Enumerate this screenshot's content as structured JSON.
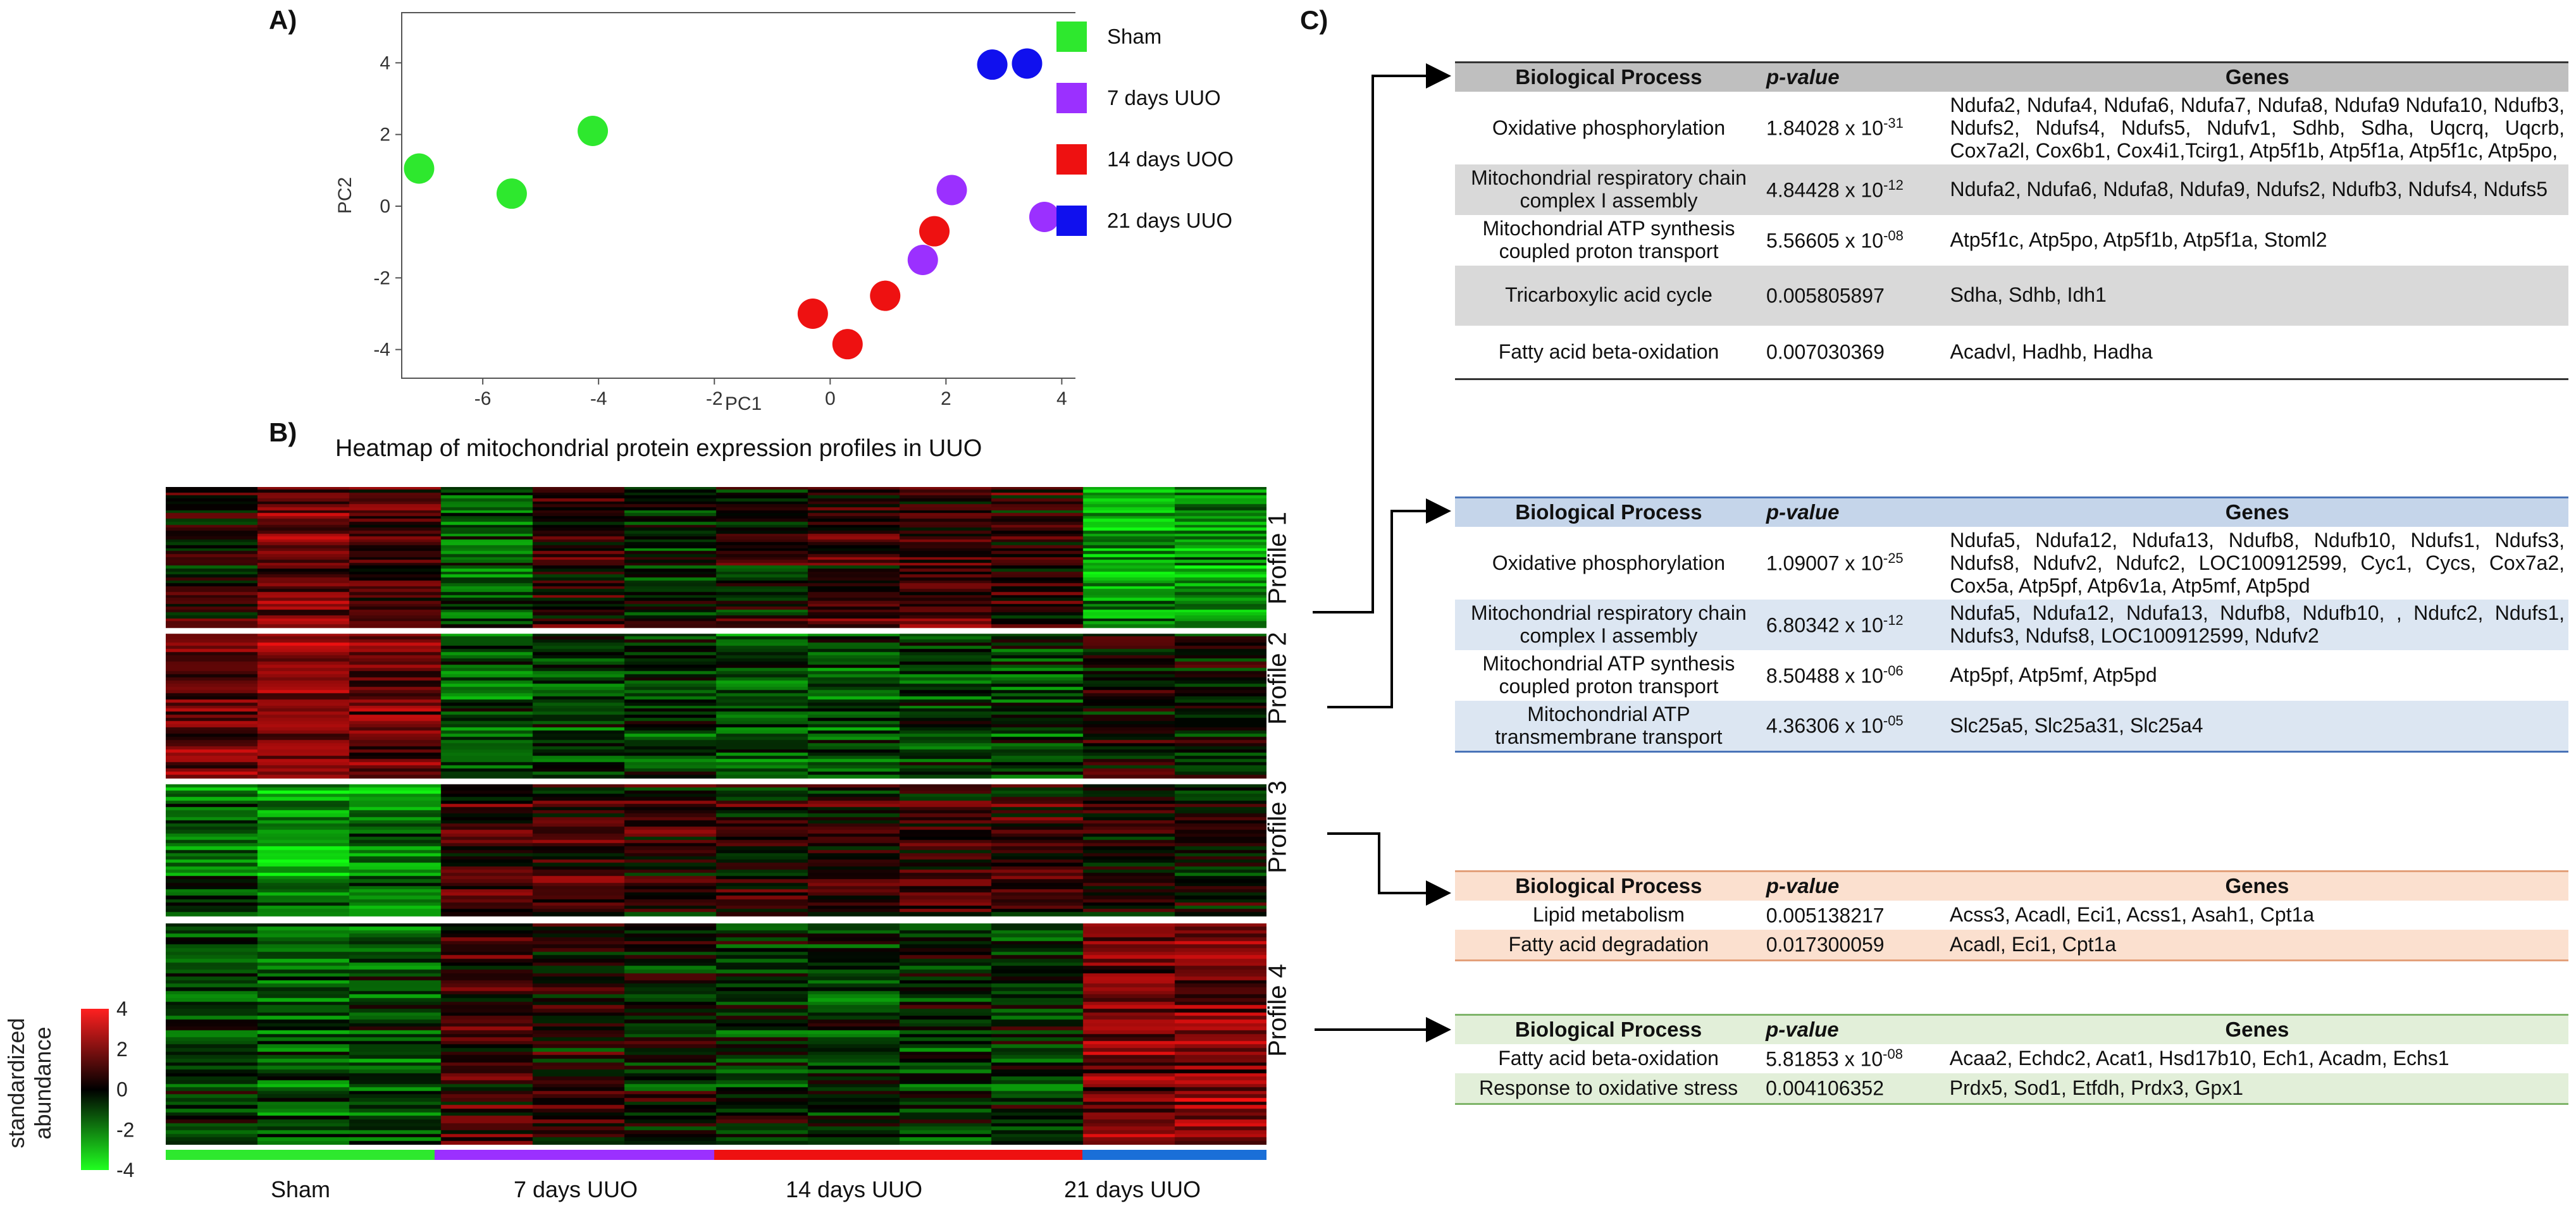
{
  "panel_labels": {
    "a": "A)",
    "b": "B)",
    "c": "C)"
  },
  "colors": {
    "sham": "#2ee82e",
    "uuo7": "#9b30ff",
    "uuo14": "#ee1111",
    "uuo21": "#1010ee",
    "heat_high": "#ff2020",
    "heat_low": "#20ff20",
    "heat_mid": "#000000",
    "group_bar_21": "#1a6fd8"
  },
  "legend": {
    "items": [
      {
        "label": "Sham",
        "color": "#2ee82e"
      },
      {
        "label": "7 days UUO",
        "color": "#9b30ff"
      },
      {
        "label": "14 days UOO",
        "color": "#ee1111"
      },
      {
        "label": "21 days UUO",
        "color": "#1010ee"
      }
    ]
  },
  "chart_data": [
    {
      "type": "scatter",
      "title": "",
      "xlabel": "PC1",
      "ylabel": "PC2",
      "xlim": [
        -7.4,
        4.4
      ],
      "ylim": [
        -4.8,
        5.4
      ],
      "xticks": [
        -6,
        -4,
        -2,
        0,
        2,
        4
      ],
      "yticks": [
        -4,
        -2,
        0,
        2,
        4
      ],
      "grid": false,
      "series": [
        {
          "name": "Sham",
          "color": "#2ee82e",
          "points": [
            [
              -7.1,
              1.05
            ],
            [
              -5.5,
              0.35
            ],
            [
              -4.1,
              2.1
            ]
          ]
        },
        {
          "name": "7 days UUO",
          "color": "#9b30ff",
          "points": [
            [
              2.1,
              0.45
            ],
            [
              1.6,
              -1.5
            ],
            [
              3.7,
              -0.3
            ]
          ]
        },
        {
          "name": "14 days UOO",
          "color": "#ee1111",
          "points": [
            [
              1.8,
              -0.7
            ],
            [
              0.95,
              -2.5
            ],
            [
              -0.3,
              -3.0
            ],
            [
              0.3,
              -3.85
            ]
          ]
        },
        {
          "name": "21 days UUO",
          "color": "#1010ee",
          "points": [
            [
              2.8,
              3.95
            ],
            [
              3.4,
              3.98
            ]
          ]
        }
      ]
    },
    {
      "type": "heatmap",
      "title": "Heatmap of mitochondrial protein expression profiles in UUO",
      "colorbar": {
        "title_line1": "standardized",
        "title_line2": "abundance",
        "range": [
          -4,
          4
        ],
        "ticks": [
          4,
          2,
          0,
          -2,
          -4
        ]
      },
      "groups": [
        "Sham",
        "7 days UUO",
        "14 days UUO",
        "21 days UUO"
      ],
      "columns_per_group": 3,
      "profiles": [
        {
          "label": "Profile 1",
          "rows": 48,
          "pattern": [
            0.3,
            1.3,
            0.8,
            -1.3,
            0.4,
            -0.4,
            0.0,
            0.6,
            0.7,
            0.5,
            -2.2,
            -2.0
          ]
        },
        {
          "label": "Profile 2",
          "rows": 46,
          "pattern": [
            1.6,
            1.8,
            1.5,
            -1.2,
            -0.6,
            -0.6,
            -1.1,
            -0.9,
            -0.7,
            -0.7,
            0.3,
            0.0
          ]
        },
        {
          "label": "Profile 3",
          "rows": 40,
          "pattern": [
            -1.3,
            -2.1,
            -1.6,
            0.6,
            0.8,
            0.5,
            0.3,
            0.3,
            0.7,
            0.6,
            0.2,
            0.1
          ]
        },
        {
          "label": "Profile 4",
          "rows": 62,
          "pattern": [
            -0.7,
            -1.3,
            -1.1,
            0.8,
            0.2,
            -0.3,
            -0.4,
            -0.6,
            -0.4,
            -0.6,
            1.6,
            1.6
          ]
        }
      ]
    }
  ],
  "tables": [
    {
      "headers": {
        "bp": "Biological Process",
        "pv": "p-value",
        "genes": "Genes"
      },
      "rows": [
        {
          "bp": "Oxidative phosphorylation",
          "pv_base": "1.84028 x 10",
          "pv_exp": "-31",
          "genes": "Ndufa2, Ndufa4, Ndufa6, Ndufa7, Ndufa8, Ndufa9 Ndufa10, Ndufb3, Ndufs2, Ndufs4, Ndufs5, Ndufv1, Sdhb, Sdha, Uqcrq, Uqcrb, Cox7a2l, Cox6b1, Cox4i1,Tcirg1, Atp5f1b, Atp5f1a, Atp5f1c, Atp5po,"
        },
        {
          "bp": "Mitochondrial respiratory chain complex I assembly",
          "pv_base": "4.84428 x 10",
          "pv_exp": "-12",
          "genes": "Ndufa2, Ndufa6, Ndufa8, Ndufa9, Ndufs2, Ndufb3, Ndufs4, Ndufs5"
        },
        {
          "bp": "Mitochondrial ATP synthesis coupled proton transport",
          "pv_base": "5.56605 x 10",
          "pv_exp": "-08",
          "genes": "Atp5f1c, Atp5po, Atp5f1b, Atp5f1a, Stoml2"
        },
        {
          "bp": "Tricarboxylic acid cycle",
          "pv_base": "0.005805897",
          "pv_exp": "",
          "genes": "Sdha, Sdhb, Idh1"
        },
        {
          "bp": "Fatty acid beta-oxidation",
          "pv_base": "0.007030369",
          "pv_exp": "",
          "genes": "Acadvl, Hadhb, Hadha"
        }
      ]
    },
    {
      "headers": {
        "bp": "Biological Process",
        "pv": "p-value",
        "genes": "Genes"
      },
      "rows": [
        {
          "bp": "Oxidative phosphorylation",
          "pv_base": "1.09007 x 10",
          "pv_exp": "-25",
          "genes": "Ndufa5, Ndufa12, Ndufa13, Ndufb8, Ndufb10, Ndufs1, Ndufs3, Ndufs8, Ndufv2, Ndufc2, LOC100912599, Cyc1, Cycs, Cox7a2, Cox5a, Atp5pf, Atp6v1a, Atp5mf, Atp5pd"
        },
        {
          "bp": "Mitochondrial respiratory chain complex I assembly",
          "pv_base": "6.80342 x 10",
          "pv_exp": "-12",
          "genes": "Ndufa5, Ndufa12, Ndufa13, Ndufb8, Ndufb10, , Ndufc2, Ndufs1, Ndufs3, Ndufs8, LOC100912599, Ndufv2"
        },
        {
          "bp": "Mitochondrial ATP synthesis coupled proton transport",
          "pv_base": "8.50488 x 10",
          "pv_exp": "-06",
          "genes": "Atp5pf, Atp5mf, Atp5pd"
        },
        {
          "bp": "Mitochondrial ATP transmembrane transport",
          "pv_base": "4.36306 x 10",
          "pv_exp": "-05",
          "genes": "Slc25a5, Slc25a31, Slc25a4"
        }
      ]
    },
    {
      "headers": {
        "bp": "Biological Process",
        "pv": "p-value",
        "genes": "Genes"
      },
      "rows": [
        {
          "bp": "Lipid metabolism",
          "pv_base": "0.005138217",
          "pv_exp": "",
          "genes": "Acss3, Acadl, Eci1, Acss1, Asah1, Cpt1a"
        },
        {
          "bp": "Fatty acid degradation",
          "pv_base": "0.017300059",
          "pv_exp": "",
          "genes": "Acadl, Eci1, Cpt1a"
        }
      ]
    },
    {
      "headers": {
        "bp": "Biological Process",
        "pv": "p-value",
        "genes": "Genes"
      },
      "rows": [
        {
          "bp": "Fatty acid beta-oxidation",
          "pv_base": "5.81853 x 10",
          "pv_exp": "-08",
          "genes": "Acaa2, Echdc2, Acat1, Hsd17b10, Ech1, Acadm, Echs1"
        },
        {
          "bp": "Response to oxidative stress",
          "pv_base": "0.004106352",
          "pv_exp": "",
          "genes": "Prdx5, Sod1, Etfdh, Prdx3, Gpx1"
        }
      ]
    }
  ]
}
